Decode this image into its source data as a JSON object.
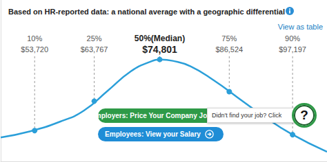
{
  "chart_data": {
    "type": "line",
    "title": "Based on HR-reported data: a national average with a geographic differential",
    "link": "View as table",
    "x": [
      48000,
      53000,
      58000,
      62000,
      66000,
      70000,
      73000,
      75000,
      77000,
      80000,
      84000,
      88000,
      92000,
      97000,
      103000
    ],
    "values": [
      35,
      44,
      58,
      74,
      103,
      132,
      145,
      149,
      147,
      139,
      118,
      93,
      68,
      40,
      14
    ],
    "color": "#2b9fd9",
    "xlim": [
      48000,
      103000
    ],
    "ylim": [
      0,
      236
    ],
    "grid": false,
    "tick_labels": false,
    "percentiles": {
      "labels": [
        "10%",
        "25%",
        "50%(Median)",
        "75%",
        "90%"
      ],
      "x": [
        53720,
        63767,
        74801,
        86524,
        97197
      ],
      "x_labels": [
        "$53,720",
        "$63,767",
        "$74,801",
        "$86,524",
        "$97,197"
      ],
      "values": [
        45,
        88,
        149,
        102,
        39
      ]
    },
    "buttons": [
      "Employers: Price Your Company Jobs",
      "Employees: View your Salary"
    ],
    "callout": "Didn't find your job? Click",
    "callout_icon": "?"
  }
}
